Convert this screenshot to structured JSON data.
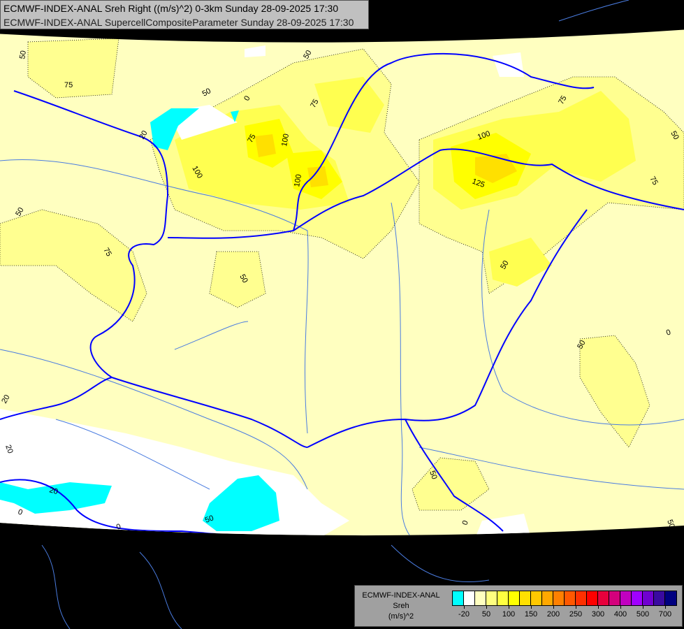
{
  "header": {
    "line1": "ECMWF-INDEX-ANAL Sreh Right ((m/s)^2) 0-3km Sunday 28-09-2025 17:30",
    "line2": "ECMWF-INDEX-ANAL SupercellCompositeParameter Sunday 28-09-2025 17:30"
  },
  "legend": {
    "model": "ECMWF-INDEX-ANAL",
    "variable": "Sreh",
    "unit": "(m/s)^2",
    "colors": [
      "#00ffff",
      "#ffffff",
      "#ffffc0",
      "#ffff80",
      "#ffff40",
      "#ffff00",
      "#ffe000",
      "#ffc800",
      "#ffa800",
      "#ff8000",
      "#ff5800",
      "#ff3000",
      "#ff0000",
      "#e8003c",
      "#d4007c",
      "#c000c0",
      "#a000ff",
      "#7000d0",
      "#3a0aa0",
      "#000080"
    ],
    "tick_labels": [
      "-20",
      "50",
      "100",
      "150",
      "200",
      "250",
      "300",
      "400",
      "500",
      "700"
    ]
  },
  "map": {
    "background_color": "#ffffc0",
    "border_color": "#0000ff",
    "river_color": "#3070e0",
    "contour_labels": [
      "50",
      "75",
      "50",
      "0",
      "75",
      "20",
      "75",
      "100",
      "100",
      "100",
      "75",
      "100",
      "125",
      "50",
      "75",
      "50",
      "75",
      "50",
      "50",
      "50",
      "0",
      "20",
      "20",
      "20",
      "0",
      "50",
      "0",
      "50",
      "50",
      "0",
      "50"
    ]
  }
}
